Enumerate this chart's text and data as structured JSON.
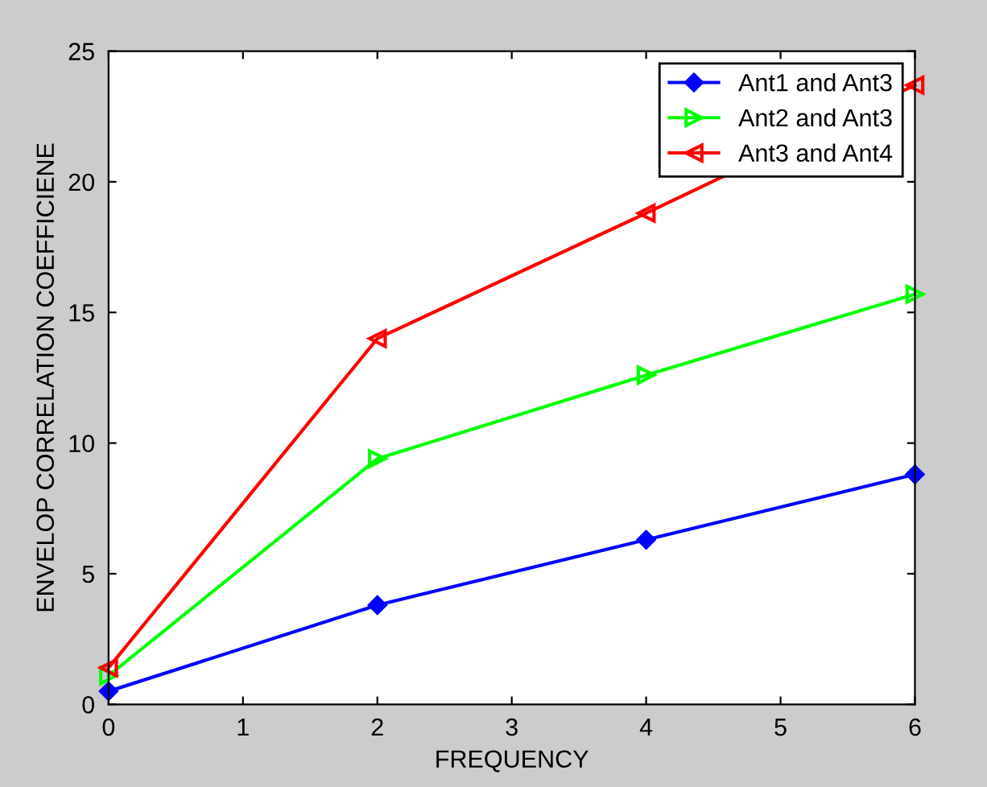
{
  "chart_data": {
    "type": "line",
    "xlabel": "FREQUENCY",
    "ylabel": "ENVELOP CORRELATION COEFFICIENE",
    "x": [
      0,
      2,
      4,
      6
    ],
    "xlim": [
      0,
      6
    ],
    "xticks": [
      0,
      1,
      2,
      3,
      4,
      5,
      6
    ],
    "ylim": [
      0,
      25
    ],
    "yticks": [
      0,
      5,
      10,
      15,
      20,
      25
    ],
    "grid": false,
    "legend": "top right",
    "line_style": "solid",
    "series": [
      {
        "name": "Ant1 and Ant3",
        "color": "#0000ff",
        "marker": "diamond",
        "values": [
          0.5,
          3.8,
          6.3,
          8.8
        ]
      },
      {
        "name": "Ant2 and Ant3",
        "color": "#00ff00",
        "marker": "triangle-right",
        "values": [
          1.1,
          9.4,
          12.6,
          15.7
        ]
      },
      {
        "name": "Ant3 and Ant4",
        "color": "#ff0000",
        "marker": "triangle-left",
        "values": [
          1.4,
          14.0,
          18.8,
          23.7
        ]
      }
    ]
  }
}
